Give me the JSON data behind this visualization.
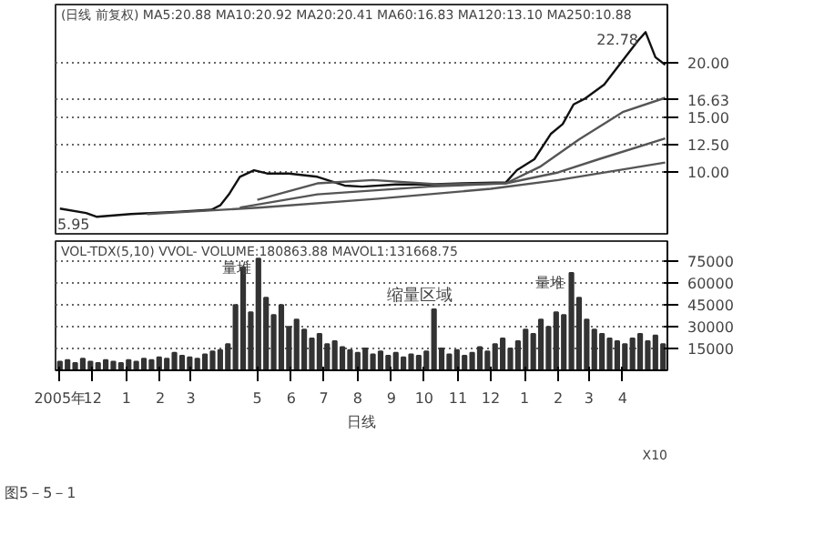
{
  "chart_data": [
    {
      "type": "line",
      "title": "(日线 前复权) MA5:20.88 MA10:20.92 MA20:20.41 MA60:16.83 MA120:13.10 MA250:10.88",
      "xlim": [
        "2005-10-28",
        "2007-05-12"
      ],
      "ylim": [
        4.4,
        25.3
      ],
      "yticks": [
        {
          "value": 10,
          "label": "10.00"
        },
        {
          "value": 12.5,
          "label": "12.50"
        },
        {
          "value": 15,
          "label": "15.00"
        },
        {
          "value": 16.63,
          "label": "16.63"
        },
        {
          "value": 20,
          "label": "20.00"
        }
      ],
      "tick_labels": "y",
      "grid": "y",
      "annotations": [
        {
          "text": "22.78",
          "x": "2007-04-22",
          "y": 22.78
        },
        {
          "text": "5.95",
          "x": "2005-12-05",
          "y": 5.95
        }
      ],
      "series": [
        {
          "color": "#111111",
          "x": [
            "2005-11-01",
            "2005-11-25",
            "2005-12-05",
            "2006-01-05",
            "2006-02-15",
            "2006-03-20",
            "2006-03-28",
            "2006-04-05",
            "2006-04-15",
            "2006-04-28",
            "2006-05-10",
            "2006-05-30",
            "2006-06-25",
            "2006-07-20",
            "2006-08-05",
            "2006-09-05",
            "2006-10-05",
            "2006-11-05",
            "2006-12-15",
            "2006-12-25",
            "2007-01-10",
            "2007-01-25",
            "2007-02-05",
            "2007-02-15",
            "2007-02-25",
            "2007-03-15",
            "2007-04-01",
            "2007-04-15",
            "2007-04-22",
            "2007-05-01",
            "2007-05-10"
          ],
          "values": [
            6.7,
            6.3,
            5.95,
            6.2,
            6.4,
            6.6,
            7.0,
            8.0,
            9.6,
            10.2,
            9.9,
            9.9,
            9.6,
            8.8,
            8.7,
            8.9,
            8.9,
            9.0,
            9.1,
            10.2,
            11.2,
            13.5,
            14.4,
            16.2,
            16.7,
            18.0,
            20.2,
            22.0,
            22.78,
            20.5,
            19.8
          ]
        },
        {
          "color": "#555555",
          "x": [
            "2006-05-01",
            "2006-06-25",
            "2006-08-15",
            "2006-10-15",
            "2006-12-15",
            "2007-01-15",
            "2007-02-20",
            "2007-04-01",
            "2007-05-10"
          ],
          "values": [
            7.5,
            9.0,
            9.3,
            8.9,
            9.0,
            10.5,
            13.0,
            15.5,
            16.8
          ]
        },
        {
          "color": "#555555",
          "x": [
            "2006-04-15",
            "2006-06-25",
            "2006-10-05",
            "2006-12-15",
            "2007-02-01",
            "2007-03-10",
            "2007-05-10"
          ],
          "values": [
            6.8,
            8.0,
            8.7,
            9.0,
            10.0,
            11.2,
            13.1
          ]
        },
        {
          "color": "#555555",
          "x": [
            "2006-01-20",
            "2006-05-05",
            "2006-08-20",
            "2006-12-01",
            "2007-02-01",
            "2007-05-10"
          ],
          "values": [
            6.2,
            6.8,
            7.6,
            8.5,
            9.3,
            10.9
          ]
        }
      ]
    },
    {
      "type": "bar",
      "title": "VOL-TDX(5,10) VVOL-  VOLUME:180863.88 MAVOL1:131668.75",
      "xlim": [
        "2005-10-28",
        "2007-05-12"
      ],
      "ylim": [
        0,
        89000
      ],
      "yticks": [
        15000,
        30000,
        45000,
        60000,
        75000
      ],
      "xticks": [
        {
          "value": "2005-11-01",
          "label": "2005年"
        },
        {
          "value": "2005-12-01",
          "label": "12"
        },
        {
          "value": "2006-01-01",
          "label": "1"
        },
        {
          "value": "2006-02-01",
          "label": "2"
        },
        {
          "value": "2006-03-01",
          "label": "3"
        },
        {
          "value": "2006-05-01",
          "label": "5"
        },
        {
          "value": "2006-06-01",
          "label": "6"
        },
        {
          "value": "2006-07-01",
          "label": "7"
        },
        {
          "value": "2006-08-01",
          "label": "8"
        },
        {
          "value": "2006-09-01",
          "label": "9"
        },
        {
          "value": "2006-10-01",
          "label": "10"
        },
        {
          "value": "2006-11-01",
          "label": "11"
        },
        {
          "value": "2006-12-01",
          "label": "12"
        },
        {
          "value": "2007-01-01",
          "label": "1"
        },
        {
          "value": "2007-02-01",
          "label": "2"
        },
        {
          "value": "2007-03-01",
          "label": "3"
        },
        {
          "value": "2007-04-01",
          "label": "4"
        }
      ],
      "xlabel": "日线",
      "grid": "y",
      "annotations": [
        {
          "text": "量堆",
          "x": "2006-05-02",
          "y": 77000
        },
        {
          "text": "量堆",
          "x": "2007-02-13",
          "y": 67000
        },
        "缩量区域",
        "X10",
        "图5－5－1"
      ],
      "series": [
        {
          "color": "#333333",
          "x": [
            "2005-11-01",
            "2005-11-08",
            "2005-11-15",
            "2005-11-22",
            "2005-11-29",
            "2005-12-06",
            "2005-12-13",
            "2005-12-20",
            "2005-12-27",
            "2006-01-03",
            "2006-01-10",
            "2006-01-17",
            "2006-01-24",
            "2006-01-31",
            "2006-02-07",
            "2006-02-14",
            "2006-02-21",
            "2006-02-28",
            "2006-03-07",
            "2006-03-14",
            "2006-03-21",
            "2006-03-28",
            "2006-04-04",
            "2006-04-11",
            "2006-04-18",
            "2006-04-25",
            "2006-05-02",
            "2006-05-09",
            "2006-05-16",
            "2006-05-23",
            "2006-05-30",
            "2006-06-06",
            "2006-06-13",
            "2006-06-20",
            "2006-06-27",
            "2006-07-04",
            "2006-07-11",
            "2006-07-18",
            "2006-07-25",
            "2006-08-01",
            "2006-08-08",
            "2006-08-15",
            "2006-08-22",
            "2006-08-29",
            "2006-09-05",
            "2006-09-12",
            "2006-09-19",
            "2006-09-26",
            "2006-10-03",
            "2006-10-10",
            "2006-10-17",
            "2006-10-24",
            "2006-10-31",
            "2006-11-07",
            "2006-11-14",
            "2006-11-21",
            "2006-11-28",
            "2006-12-05",
            "2006-12-12",
            "2006-12-19",
            "2006-12-26",
            "2007-01-02",
            "2007-01-09",
            "2007-01-16",
            "2007-01-23",
            "2007-01-30",
            "2007-02-06",
            "2007-02-13",
            "2007-02-20",
            "2007-02-27",
            "2007-03-06",
            "2007-03-13",
            "2007-03-20",
            "2007-03-27",
            "2007-04-03",
            "2007-04-10",
            "2007-04-17",
            "2007-04-24",
            "2007-05-01",
            "2007-05-08"
          ],
          "values": [
            6000,
            7000,
            5000,
            8000,
            6000,
            5000,
            7000,
            6000,
            5000,
            7000,
            6000,
            8000,
            7000,
            9000,
            8000,
            12000,
            10000,
            9000,
            8000,
            11000,
            13000,
            14000,
            18000,
            45000,
            71000,
            40000,
            77000,
            50000,
            38000,
            45000,
            30000,
            35000,
            28000,
            22000,
            25000,
            18000,
            20000,
            16000,
            14000,
            12000,
            15000,
            11000,
            13000,
            10000,
            12000,
            9000,
            11000,
            10000,
            13000,
            42000,
            15000,
            11000,
            14000,
            10000,
            12000,
            16000,
            13000,
            18000,
            22000,
            15000,
            20000,
            28000,
            25000,
            35000,
            30000,
            40000,
            38000,
            67000,
            50000,
            35000,
            28000,
            25000,
            22000,
            20000,
            18000,
            22000,
            25000,
            20000,
            24000,
            18000
          ]
        }
      ]
    }
  ]
}
